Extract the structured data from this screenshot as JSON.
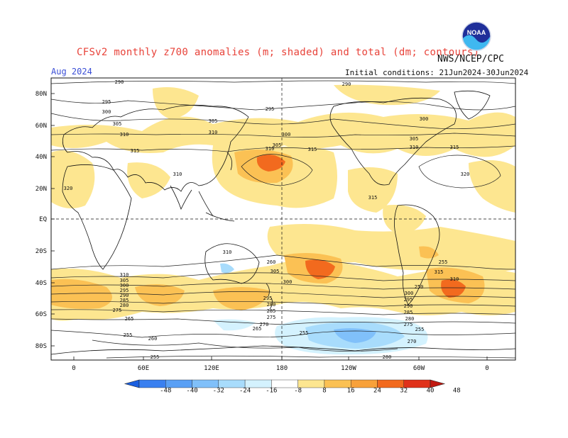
{
  "header": {
    "title": "CFSv2 monthly z700 anomalies (m; shaded) and total (dm; contours)",
    "agency": "NWS/NCEP/CPC",
    "month": "Aug 2024",
    "initial_conditions": "Initial conditions: 21Jun2024-30Jun2024"
  },
  "logo": {
    "text": "NOAA",
    "icon": "noaa-logo-icon"
  },
  "axes": {
    "lat_labels": [
      "80N",
      "60N",
      "40N",
      "20N",
      "EQ",
      "20S",
      "40S",
      "60S",
      "80S"
    ],
    "lon_labels": [
      "0",
      "60E",
      "120E",
      "180",
      "120W",
      "60W",
      "0"
    ]
  },
  "contour_labels": [
    "290",
    "295",
    "300",
    "305",
    "310",
    "315",
    "320",
    "310",
    "300",
    "295",
    "290",
    "285",
    "280",
    "275",
    "270",
    "265",
    "260",
    "255",
    "250"
  ],
  "colorbar": {
    "labels": [
      "-48",
      "-40",
      "-32",
      "-24",
      "-16",
      "-8",
      "8",
      "16",
      "24",
      "32",
      "40",
      "48"
    ],
    "colors": [
      "#1a5fe0",
      "#3a80f0",
      "#5aa0f5",
      "#80c0fa",
      "#a8dcfc",
      "#d4f2fe",
      "#ffffff",
      "#fde690",
      "#fbc154",
      "#f8a13a",
      "#f26a1e",
      "#e0321a",
      "#c01810"
    ]
  },
  "map_colors": {
    "positive_light": "#fde690",
    "positive_mid": "#fbc154",
    "positive_high": "#f26a1e",
    "negative_light": "#d4f2fe",
    "negative_mid": "#a8dcfc",
    "negative_deep": "#80c0fa"
  }
}
